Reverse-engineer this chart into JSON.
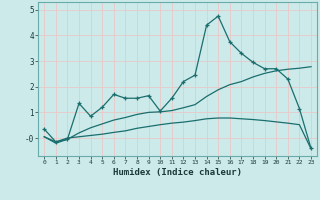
{
  "xlabel": "Humidex (Indice chaleur)",
  "bg_color": "#cceaea",
  "grid_color": "#e8c8c8",
  "line_color": "#1a6e6e",
  "xlim": [
    -0.5,
    23.5
  ],
  "ylim": [
    -0.7,
    5.3
  ],
  "xticks": [
    0,
    1,
    2,
    3,
    4,
    5,
    6,
    7,
    8,
    9,
    10,
    11,
    12,
    13,
    14,
    15,
    16,
    17,
    18,
    19,
    20,
    21,
    22,
    23
  ],
  "yticks": [
    0,
    1,
    2,
    3,
    4,
    5
  ],
  "ytick_labels": [
    "-0",
    "1",
    "2",
    "3",
    "4",
    "5"
  ],
  "line1_x": [
    0,
    1,
    2,
    3,
    4,
    5,
    6,
    7,
    8,
    9,
    10,
    11,
    12,
    13,
    14,
    15,
    16,
    17,
    18,
    19,
    20,
    21,
    22,
    23
  ],
  "line1_y": [
    0.35,
    -0.15,
    -0.05,
    1.35,
    0.85,
    1.2,
    1.7,
    1.55,
    1.55,
    1.65,
    1.05,
    1.55,
    2.2,
    2.45,
    4.4,
    4.75,
    3.75,
    3.3,
    2.95,
    2.7,
    2.7,
    2.3,
    1.15,
    -0.4
  ],
  "line2_x": [
    0,
    1,
    2,
    3,
    4,
    5,
    6,
    7,
    8,
    9,
    10,
    11,
    12,
    13,
    14,
    15,
    16,
    17,
    18,
    19,
    20,
    21,
    22,
    23
  ],
  "line2_y": [
    0.05,
    -0.2,
    -0.05,
    0.2,
    0.4,
    0.55,
    0.7,
    0.8,
    0.92,
    1.0,
    1.02,
    1.07,
    1.18,
    1.3,
    1.62,
    1.88,
    2.08,
    2.2,
    2.38,
    2.52,
    2.62,
    2.68,
    2.72,
    2.78
  ],
  "line3_x": [
    0,
    1,
    2,
    3,
    4,
    5,
    6,
    7,
    8,
    9,
    10,
    11,
    12,
    13,
    14,
    15,
    16,
    17,
    18,
    19,
    20,
    21,
    22,
    23
  ],
  "line3_y": [
    0.05,
    -0.15,
    0.0,
    0.05,
    0.1,
    0.15,
    0.22,
    0.28,
    0.38,
    0.45,
    0.52,
    0.58,
    0.62,
    0.68,
    0.75,
    0.78,
    0.78,
    0.75,
    0.72,
    0.68,
    0.63,
    0.58,
    0.52,
    -0.42
  ]
}
